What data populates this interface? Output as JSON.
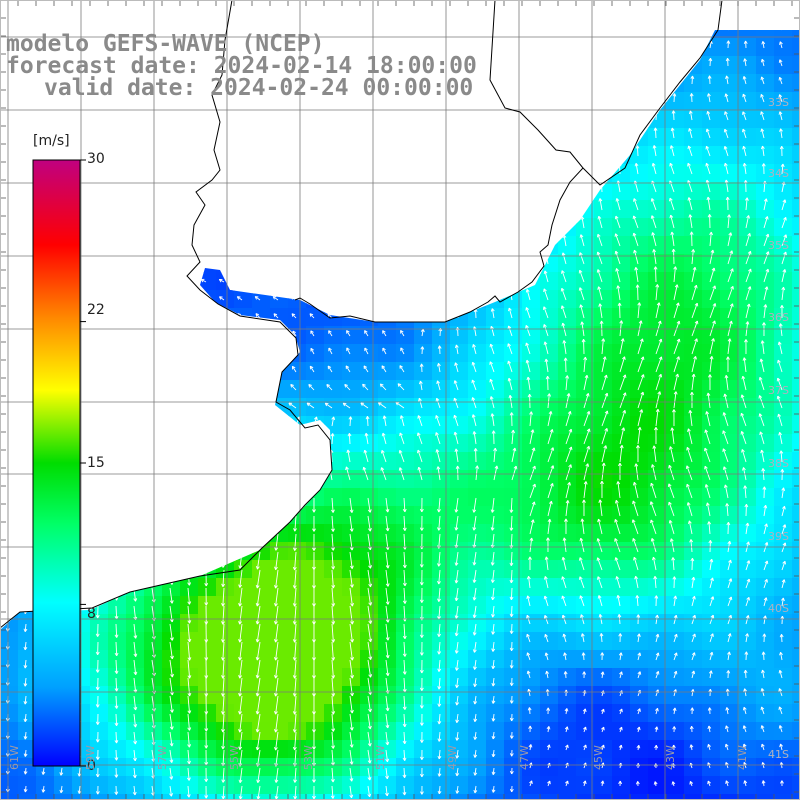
{
  "titles": {
    "model": "modelo GEFS-WAVE (NCEP)",
    "forecast": "forecast date: 2024-02-14 18:00:00",
    "valid": "valid date: 2024-02-24 00:00:00"
  },
  "colorbar": {
    "unit": "[m/s]",
    "ticks": [
      {
        "value": 30,
        "label": "30"
      },
      {
        "value": 22,
        "label": "22"
      },
      {
        "value": 15,
        "label": "15"
      },
      {
        "value": 8,
        "label": "8"
      },
      {
        "value": 0,
        "label": "0"
      }
    ],
    "stops": [
      "#0000ff",
      "#00aaff",
      "#00ffff",
      "#00ff66",
      "#00dd00",
      "#ffff00",
      "#ff8800",
      "#ff0000",
      "#c00080"
    ]
  },
  "graticule": {
    "lon_labels": [
      "61W",
      "59W",
      "57W",
      "55W",
      "53W",
      "51W",
      "49W",
      "47W",
      "45W",
      "43W",
      "41W"
    ],
    "lat_labels": [
      "33S",
      "34S",
      "35S",
      "36S",
      "37S",
      "38S",
      "39S",
      "40S",
      "41S"
    ]
  },
  "colors": {
    "land": "#ffffff",
    "coast": "#000000",
    "grid": "#7a7a7a",
    "arrows": "#ffffff"
  }
}
